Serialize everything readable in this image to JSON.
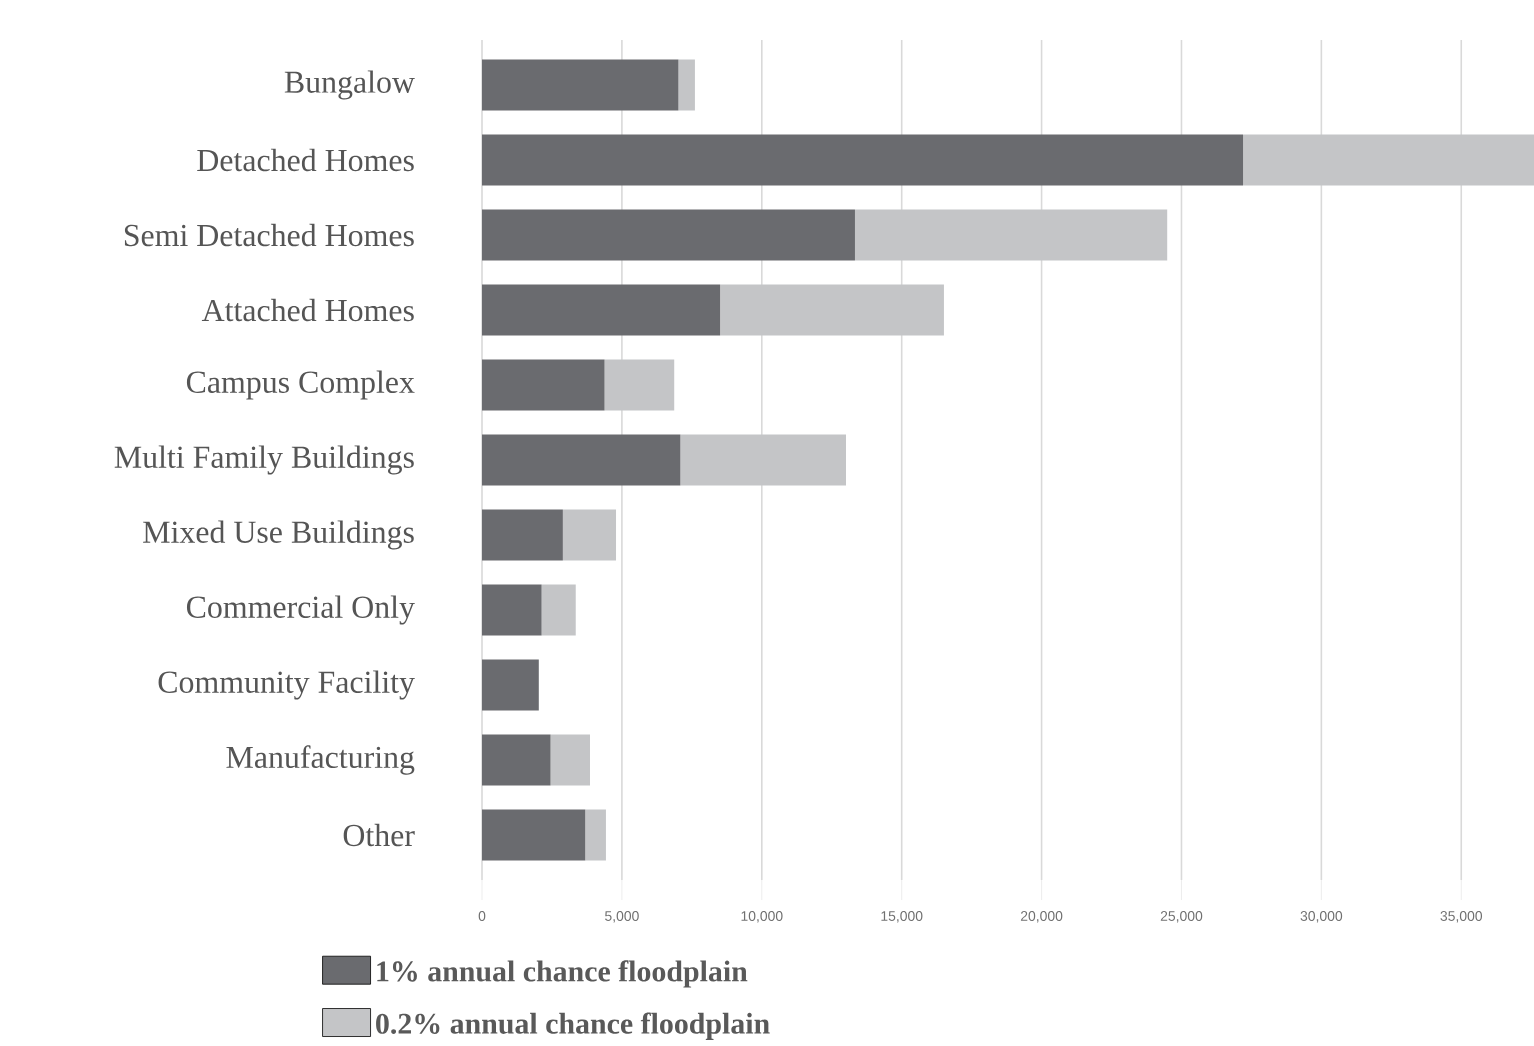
{
  "chart_data": {
    "type": "bar",
    "orientation": "horizontal",
    "stacked": true,
    "categories": [
      "Bungalow",
      "Detached Homes",
      "Semi Detached Homes",
      "Attached Homes",
      "Campus Complex",
      "Multi Family Buildings",
      "Mixed Use Buildings",
      "Commercial Only",
      "Community Facility",
      "Manufacturing",
      "Other"
    ],
    "series": [
      {
        "name": "1% annual chance floodplain",
        "color": "#6a6b6f",
        "values": [
          7020,
          27200,
          13330,
          8510,
          4380,
          7090,
          2890,
          2130,
          2030,
          2450,
          3690
        ]
      },
      {
        "name": "0.2% annual chance floodplain",
        "color": "#c4c5c7",
        "values": [
          590,
          10400,
          11160,
          8000,
          2490,
          5920,
          1900,
          1220,
          0,
          1410,
          740
        ]
      }
    ],
    "xlim": [
      0,
      37600
    ],
    "xticks": [
      {
        "value": 0,
        "label": "0"
      },
      {
        "value": 5000,
        "label": "5,000"
      },
      {
        "value": 10000,
        "label": "10,000"
      },
      {
        "value": 15000,
        "label": "15,000"
      },
      {
        "value": 20000,
        "label": "20,000"
      },
      {
        "value": 25000,
        "label": "25,000"
      },
      {
        "value": 30000,
        "label": "30,000"
      },
      {
        "value": 35000,
        "label": "35,000"
      }
    ],
    "grid": "x",
    "legend": "bottom"
  }
}
